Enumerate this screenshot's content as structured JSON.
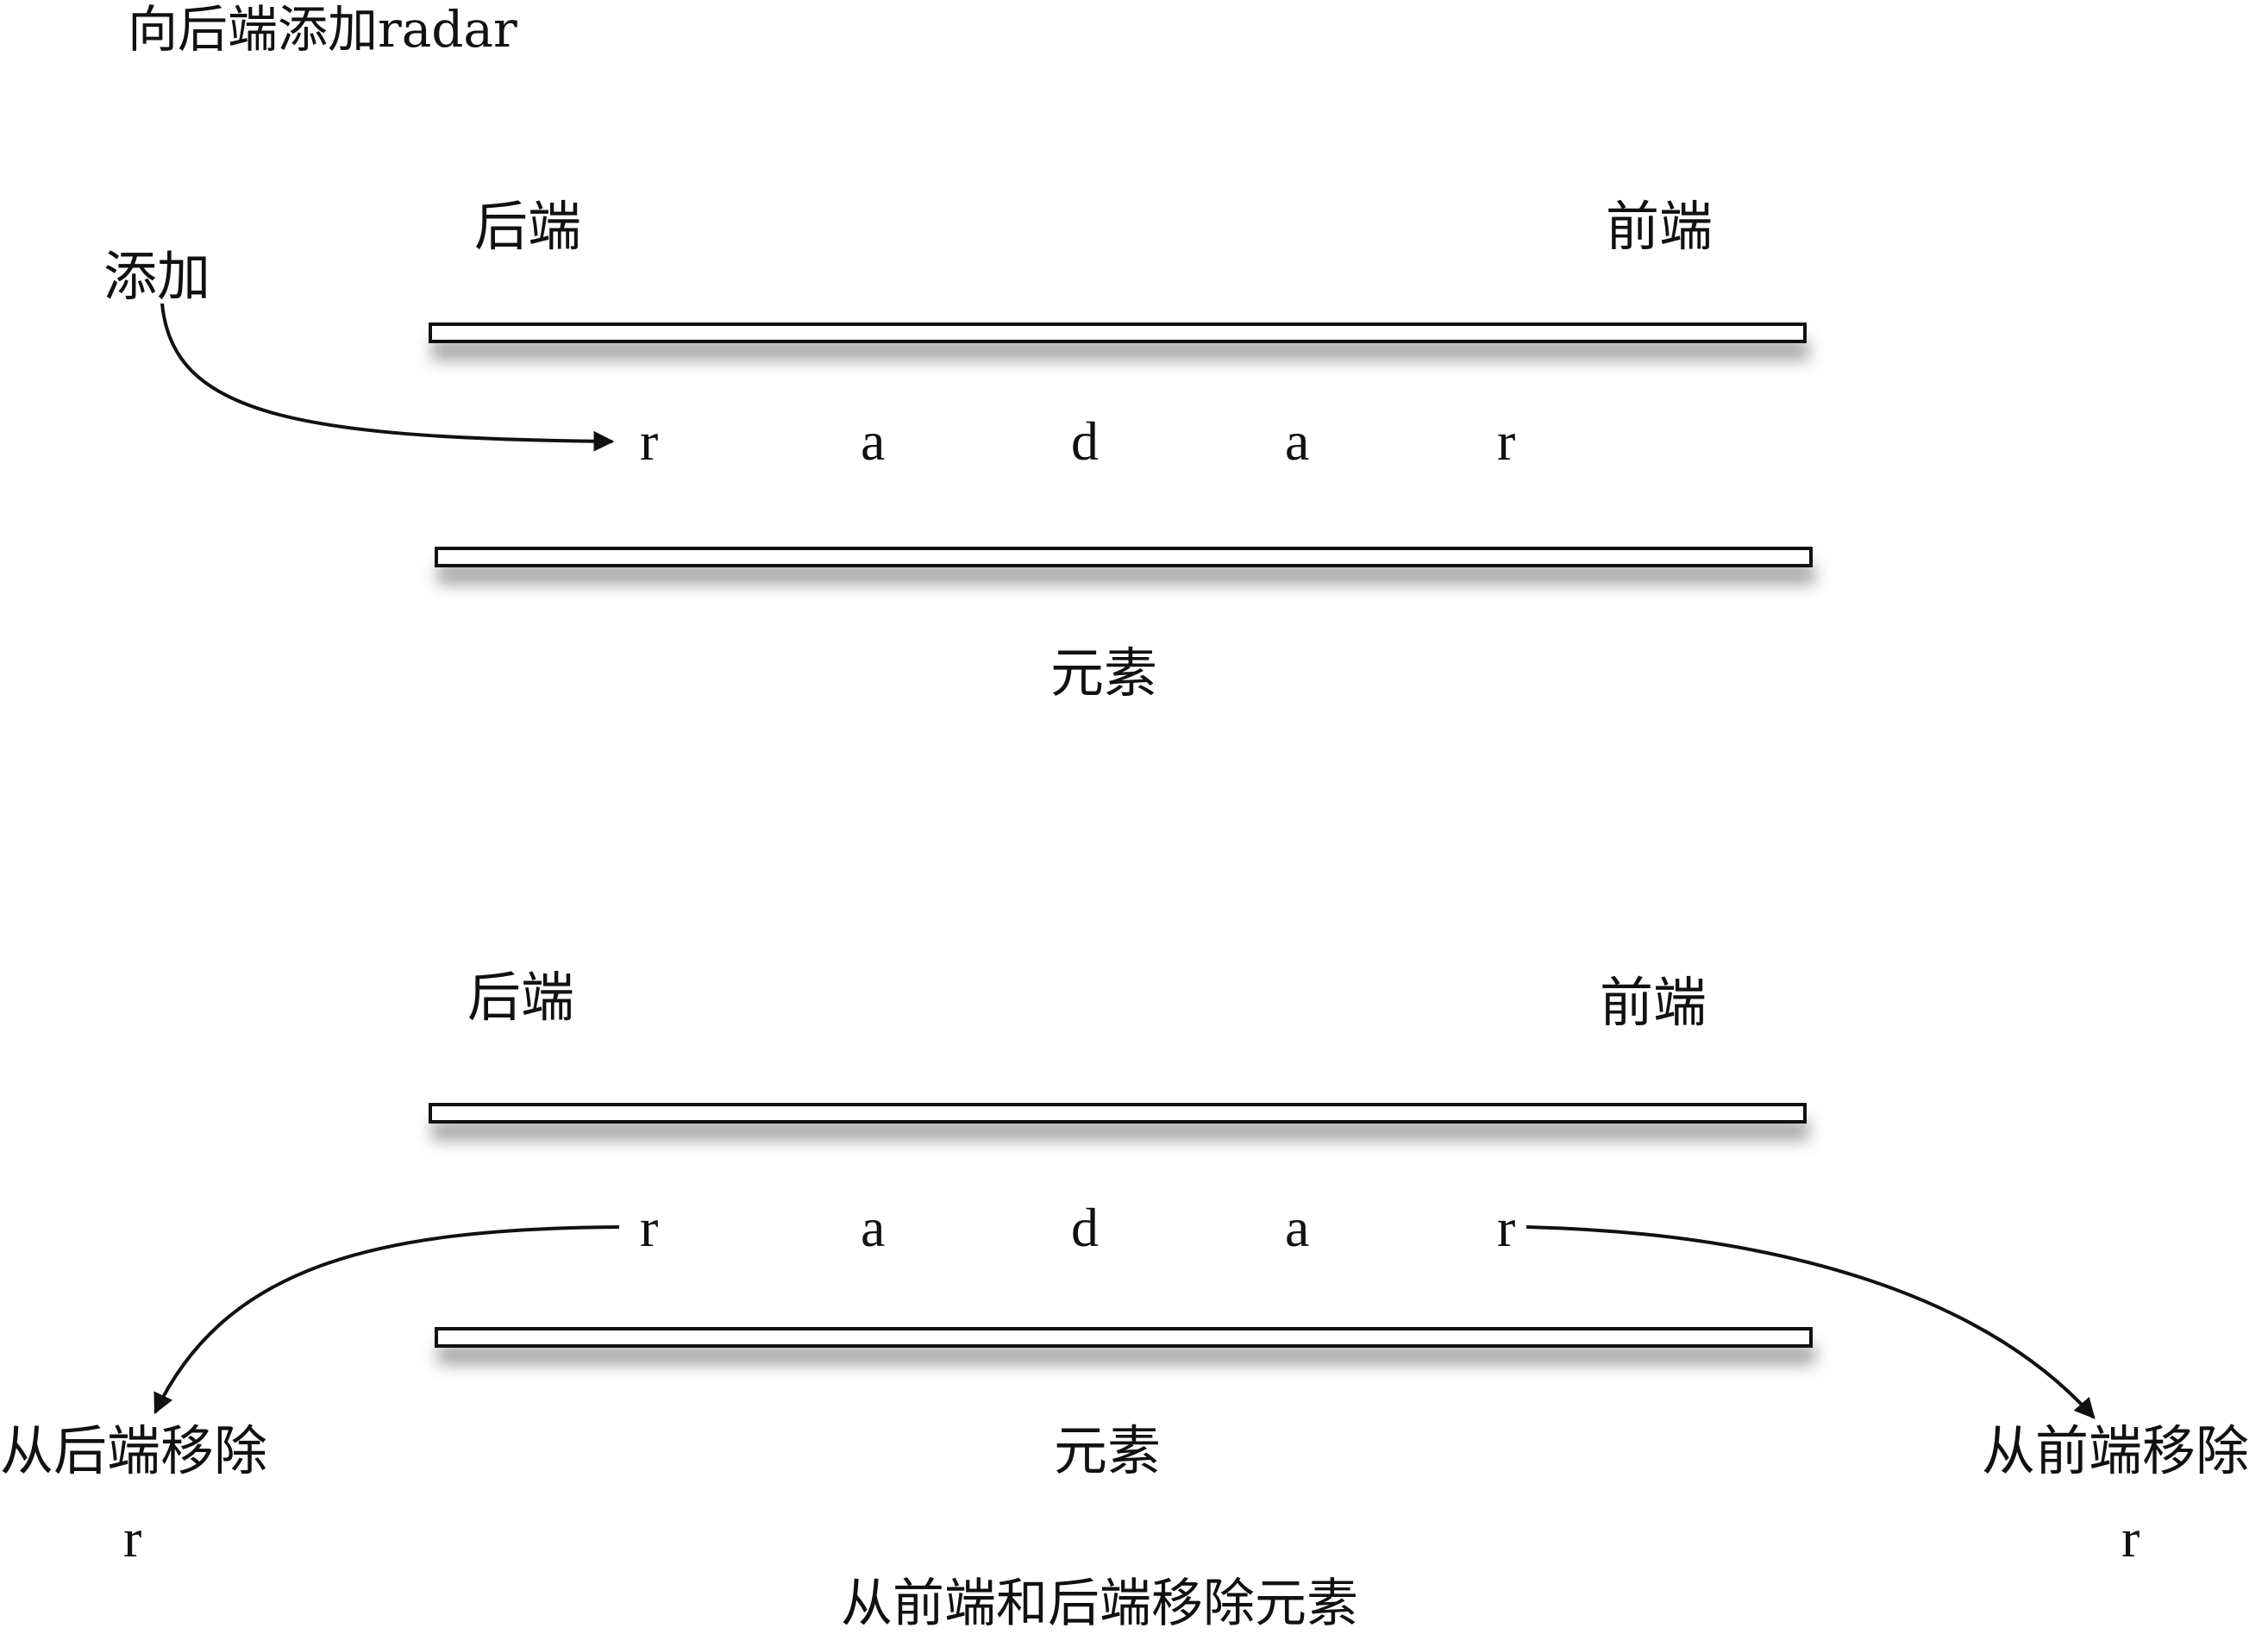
{
  "top_panel": {
    "heading": "向后端添加radar",
    "rear_label": "后端",
    "front_label": "前端",
    "add_label": "添加",
    "letters": [
      "r",
      "a",
      "d",
      "a",
      "r"
    ],
    "elements_label": "元素"
  },
  "bottom_panel": {
    "rear_label": "后端",
    "front_label": "前端",
    "letters": [
      "r",
      "a",
      "d",
      "a",
      "r"
    ],
    "elements_label": "元素",
    "remove_rear_label": "从后端移除",
    "remove_rear_item": "r",
    "remove_front_label": "从前端移除",
    "remove_front_item": "r",
    "caption": "从前端和后端移除元素"
  }
}
